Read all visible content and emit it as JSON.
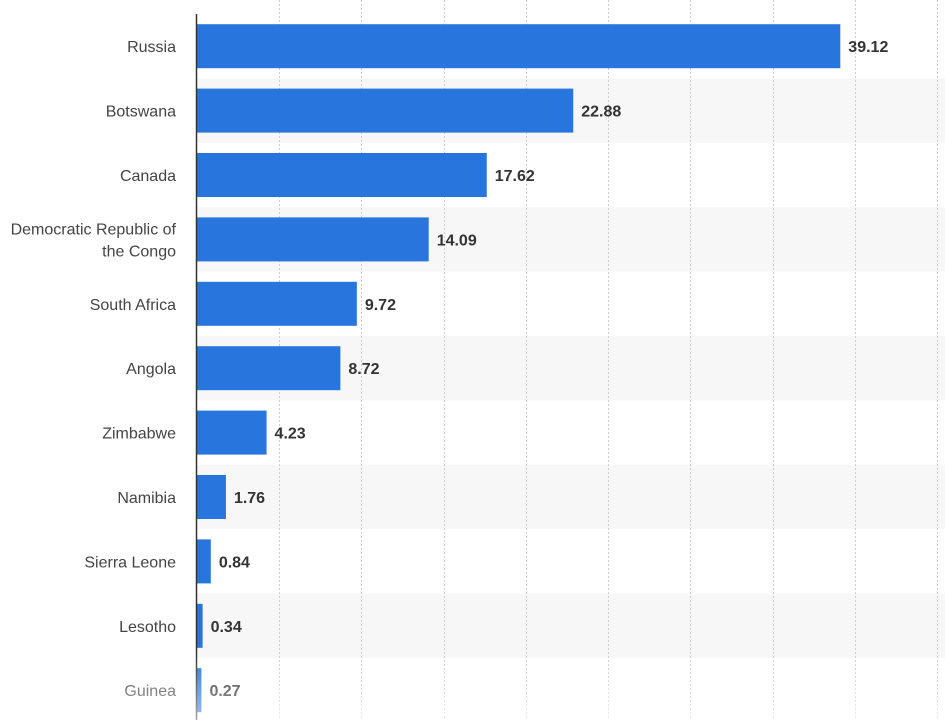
{
  "chart_data": {
    "type": "bar",
    "orientation": "horizontal",
    "categories": [
      "Russia",
      "Botswana",
      "Canada",
      "Democratic Republic of the Congo",
      "South Africa",
      "Angola",
      "Zimbabwe",
      "Namibia",
      "Sierra Leone",
      "Lesotho",
      "Guinea"
    ],
    "values": [
      39.12,
      22.88,
      17.62,
      14.09,
      9.72,
      8.72,
      4.23,
      1.76,
      0.84,
      0.34,
      0.27
    ],
    "value_labels": [
      "39.12",
      "22.88",
      "17.62",
      "14.09",
      "9.72",
      "8.72",
      "4.23",
      "1.76",
      "0.84",
      "0.34",
      "0.27"
    ],
    "title": "",
    "xlabel": "",
    "ylabel": "",
    "xlim": [
      0,
      45
    ],
    "gridlines": true,
    "alternating_row_shading": true,
    "colors": {
      "bar": "#2876dd",
      "row_shade": "#f7f7f7",
      "grid": "#cccccc",
      "axis": "#333333"
    }
  }
}
